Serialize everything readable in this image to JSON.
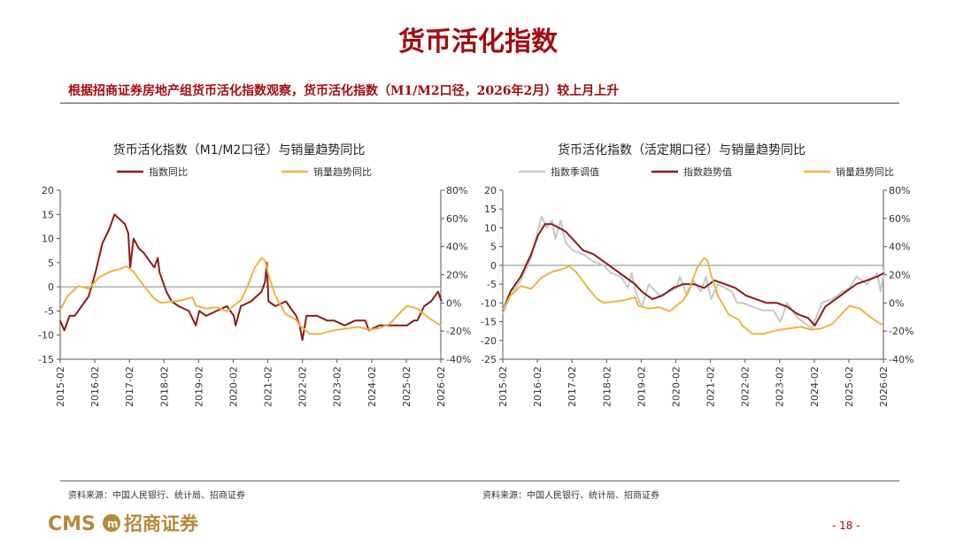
{
  "page": {
    "title": "货币活化指数",
    "subtitle": "根据招商证券房地产组货币活化指数观察，货币活化指数（M1/M2口径，2026年2月）较上月上升",
    "page_number": "- 18 -",
    "logo": {
      "latin": "CMS",
      "name": "招商证券"
    },
    "colors": {
      "accent": "#a10d12",
      "series_dark": "#8b1a1a",
      "series_orange": "#f0b33e",
      "series_grey": "#c8c8c8"
    }
  },
  "chart_data": [
    {
      "type": "line",
      "title": "货币活化指数（M1/M2口径）与销量趋势同比",
      "source": "资料来源：中国人民银行、统计局、招商证券",
      "x_ticks": [
        "2015-02",
        "2016-02",
        "2017-02",
        "2018-02",
        "2019-02",
        "2020-02",
        "2021-02",
        "2022-02",
        "2023-02",
        "2024-02",
        "2025-02",
        "2026-02"
      ],
      "y_left": {
        "min": -15,
        "max": 20,
        "ticks": [
          "20",
          "15",
          "10",
          "5",
          "0",
          "-5",
          "-10",
          "-15"
        ]
      },
      "y_right": {
        "min": -40,
        "max": 80,
        "ticks": [
          "80%",
          "60%",
          "40%",
          "20%",
          "0%",
          "-20%",
          "-40%"
        ]
      },
      "grid": false,
      "legend": "top",
      "series": [
        {
          "name": "指数同比",
          "axis": "left",
          "color": "#8b1a1a",
          "x": [
            2015.08,
            2015.2,
            2015.35,
            2015.5,
            2015.7,
            2015.9,
            2016.1,
            2016.3,
            2016.5,
            2016.65,
            2016.8,
            2016.95,
            2017.05,
            2017.1,
            2017.2,
            2017.35,
            2017.5,
            2017.6,
            2017.7,
            2017.8,
            2017.9,
            2017.95,
            2018.05,
            2018.15,
            2018.3,
            2018.5,
            2018.8,
            2019.0,
            2019.1,
            2019.3,
            2019.6,
            2019.9,
            2020.1,
            2020.15,
            2020.3,
            2020.6,
            2020.9,
            2021.0,
            2021.05,
            2021.1,
            2021.3,
            2021.6,
            2021.9,
            2022.0,
            2022.08,
            2022.2,
            2022.5,
            2022.8,
            2023.0,
            2023.3,
            2023.6,
            2023.9,
            2024.0,
            2024.3,
            2024.6,
            2024.9,
            2025.1,
            2025.3,
            2025.4,
            2025.6,
            2025.8,
            2026.0,
            2026.1
          ],
          "y": [
            -7,
            -9,
            -6,
            -6,
            -4,
            -2,
            3,
            9,
            12,
            15,
            14,
            13,
            11,
            4,
            10,
            8,
            7,
            6,
            5,
            4,
            6,
            3,
            1,
            -1,
            -3,
            -4,
            -5,
            -8,
            -5,
            -6,
            -5,
            -4,
            -6,
            -8,
            -4,
            -3,
            -1,
            1,
            5,
            -3,
            -4,
            -3,
            -6,
            -8,
            -11,
            -6,
            -6,
            -7,
            -7,
            -8,
            -7,
            -7,
            -9,
            -8,
            -8,
            -8,
            -8,
            -7,
            -7,
            -4,
            -3,
            -1,
            -3
          ]
        },
        {
          "name": "销量趋势同比",
          "axis": "right",
          "color": "#f0b33e",
          "x": [
            2015.08,
            2015.3,
            2015.6,
            2015.9,
            2016.2,
            2016.5,
            2016.8,
            2017.0,
            2017.2,
            2017.5,
            2017.8,
            2018.0,
            2018.3,
            2018.6,
            2018.9,
            2019.0,
            2019.3,
            2019.6,
            2019.9,
            2020.1,
            2020.3,
            2020.5,
            2020.7,
            2020.9,
            2021.0,
            2021.1,
            2021.3,
            2021.6,
            2021.9,
            2022.0,
            2022.3,
            2022.6,
            2022.9,
            2023.1,
            2023.4,
            2023.7,
            2024.0,
            2024.3,
            2024.6,
            2024.9,
            2025.1,
            2025.4,
            2025.7,
            2026.0,
            2026.1
          ],
          "y": [
            -5,
            5,
            12,
            10,
            18,
            22,
            24,
            26,
            22,
            12,
            3,
            0,
            1,
            2,
            4,
            -2,
            -4,
            -3,
            -6,
            -2,
            2,
            12,
            25,
            32,
            30,
            20,
            5,
            -8,
            -12,
            -16,
            -22,
            -22,
            -20,
            -19,
            -18,
            -17,
            -19,
            -18,
            -15,
            -7,
            -2,
            -4,
            -10,
            -15,
            -16
          ]
        }
      ]
    },
    {
      "type": "line",
      "title": "货币活化指数（活定期口径）与销量趋势同比",
      "source": "资料来源：中国人民银行、统计局、招商证券",
      "x_ticks": [
        "2015-02",
        "2016-02",
        "2017-02",
        "2018-02",
        "2019-02",
        "2020-02",
        "2021-02",
        "2022-02",
        "2023-02",
        "2024-02",
        "2025-02",
        "2026-02"
      ],
      "y_left": {
        "min": -25,
        "max": 20,
        "ticks": [
          "20",
          "15",
          "10",
          "5",
          "0",
          "-5",
          "-10",
          "-15",
          "-20",
          "-25"
        ]
      },
      "y_right": {
        "min": -40,
        "max": 80,
        "ticks": [
          "80%",
          "60%",
          "40%",
          "20%",
          "0%",
          "-20%",
          "-40%"
        ]
      },
      "grid": false,
      "legend": "top",
      "series": [
        {
          "name": "指数季调值",
          "axis": "left",
          "color": "#c8c8c8",
          "x": [
            2015.08,
            2015.3,
            2015.6,
            2015.9,
            2016.0,
            2016.2,
            2016.35,
            2016.5,
            2016.6,
            2016.75,
            2016.9,
            2017.1,
            2017.4,
            2017.7,
            2018.0,
            2018.2,
            2018.5,
            2018.7,
            2018.8,
            2018.95,
            2019.1,
            2019.3,
            2019.6,
            2019.9,
            2020.1,
            2020.2,
            2020.4,
            2020.6,
            2020.8,
            2020.95,
            2021.1,
            2021.3,
            2021.5,
            2021.7,
            2021.85,
            2022.0,
            2022.3,
            2022.6,
            2022.9,
            2023.1,
            2023.3,
            2023.6,
            2023.9,
            2024.0,
            2024.3,
            2024.6,
            2024.9,
            2025.1,
            2025.3,
            2025.6,
            2025.9,
            2026.0,
            2026.1
          ],
          "y": [
            -13,
            -8,
            -4,
            2,
            6,
            13,
            10,
            12,
            7,
            12,
            6,
            4,
            3,
            1,
            0,
            -2,
            -3,
            -6,
            -2,
            -8,
            -11,
            -5,
            -8,
            -7,
            -6,
            -3,
            -8,
            -4,
            -7,
            -3,
            -9,
            -5,
            -6,
            -7,
            -10,
            -10,
            -11,
            -12,
            -12,
            -15,
            -10,
            -14,
            -16,
            -17,
            -10,
            -9,
            -7,
            -6,
            -3,
            -5,
            -2,
            -7,
            -1
          ]
        },
        {
          "name": "指数趋势值",
          "axis": "left",
          "color": "#8b1a1a",
          "x": [
            2015.08,
            2015.3,
            2015.6,
            2015.9,
            2016.1,
            2016.3,
            2016.5,
            2016.7,
            2016.9,
            2017.1,
            2017.4,
            2017.7,
            2018.0,
            2018.3,
            2018.6,
            2018.9,
            2019.1,
            2019.4,
            2019.7,
            2020.0,
            2020.3,
            2020.6,
            2020.9,
            2021.2,
            2021.5,
            2021.8,
            2022.1,
            2022.4,
            2022.7,
            2023.0,
            2023.3,
            2023.6,
            2023.9,
            2024.1,
            2024.4,
            2024.7,
            2025.0,
            2025.3,
            2025.6,
            2025.9,
            2026.1
          ],
          "y": [
            -12,
            -7,
            -3,
            3,
            8,
            11,
            11,
            10,
            9,
            7,
            4,
            3,
            1,
            -1,
            -3,
            -5,
            -7,
            -9,
            -8,
            -6,
            -5,
            -5,
            -6,
            -4,
            -5,
            -6,
            -8,
            -9,
            -10,
            -10,
            -11,
            -13,
            -14,
            -16,
            -11,
            -9,
            -7,
            -5,
            -4,
            -3,
            -2
          ]
        },
        {
          "name": "销量趋势同比",
          "axis": "right",
          "color": "#f0b33e",
          "x": [
            2015.08,
            2015.3,
            2015.6,
            2015.9,
            2016.2,
            2016.5,
            2016.8,
            2017.0,
            2017.2,
            2017.5,
            2017.8,
            2018.0,
            2018.3,
            2018.6,
            2018.9,
            2019.0,
            2019.3,
            2019.6,
            2019.9,
            2020.1,
            2020.3,
            2020.5,
            2020.7,
            2020.9,
            2021.0,
            2021.1,
            2021.3,
            2021.6,
            2021.9,
            2022.0,
            2022.3,
            2022.6,
            2022.9,
            2023.1,
            2023.4,
            2023.7,
            2024.0,
            2024.3,
            2024.6,
            2024.9,
            2025.1,
            2025.4,
            2025.7,
            2026.0,
            2026.1
          ],
          "y": [
            -5,
            5,
            12,
            10,
            18,
            22,
            24,
            26,
            22,
            12,
            3,
            0,
            1,
            2,
            4,
            -2,
            -4,
            -3,
            -6,
            -2,
            2,
            12,
            25,
            32,
            30,
            20,
            5,
            -8,
            -12,
            -16,
            -22,
            -22,
            -20,
            -19,
            -18,
            -17,
            -19,
            -18,
            -15,
            -7,
            -2,
            -4,
            -10,
            -15,
            -16
          ]
        }
      ]
    }
  ]
}
